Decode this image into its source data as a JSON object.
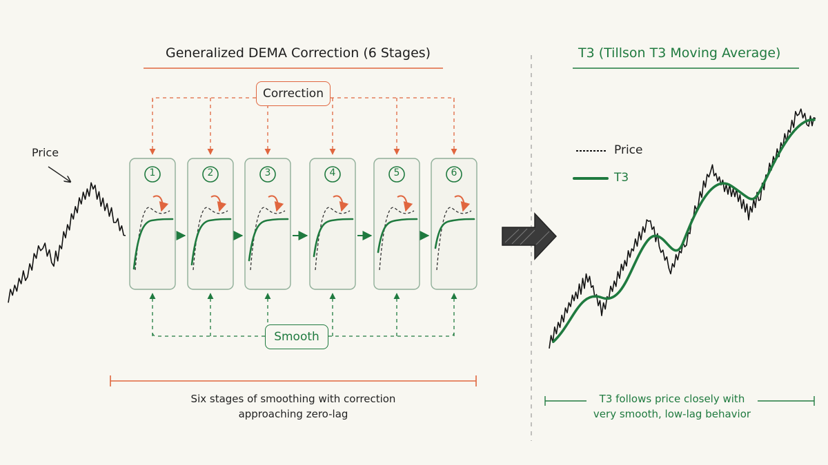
{
  "left_panel": {
    "title": "Generalized DEMA Correction (6 Stages)",
    "price_label": "Price",
    "correction_label": "Correction",
    "smooth_label": "Smooth",
    "stages": [
      "1",
      "2",
      "3",
      "4",
      "5",
      "6"
    ],
    "caption_line1": "Six stages of smoothing with correction",
    "caption_line2": "approaching zero-lag"
  },
  "right_panel": {
    "title": "T3 (Tillson T3 Moving Average)",
    "legend": [
      {
        "label": "Price",
        "color": "#111111"
      },
      {
        "label": "T3",
        "color": "#1f7a3f"
      }
    ],
    "caption_line1": "T3 follows price closely with",
    "caption_line2": "very smooth, low-lag behavior"
  },
  "colors": {
    "accent_orange": "#e0663f",
    "accent_green": "#1f7a3f",
    "ink": "#111111",
    "background": "#f8f7f1"
  }
}
